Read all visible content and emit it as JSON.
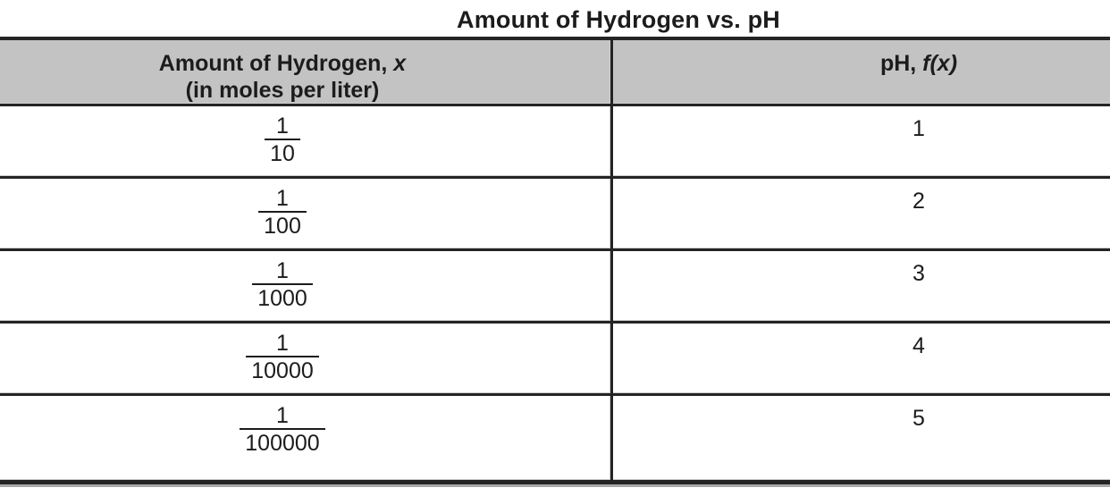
{
  "title": "Amount of Hydrogen vs. pH",
  "table": {
    "header": {
      "x_col": {
        "line1_text": "Amount of Hydrogen, ",
        "line1_var": "x",
        "line2": "(in moles per liter)"
      },
      "fx_col": {
        "prefix": "pH, ",
        "func": "f(x)"
      }
    },
    "rows": [
      {
        "x_num": "1",
        "x_den": "10",
        "fx": "1"
      },
      {
        "x_num": "1",
        "x_den": "100",
        "fx": "2"
      },
      {
        "x_num": "1",
        "x_den": "1000",
        "fx": "3"
      },
      {
        "x_num": "1",
        "x_den": "10000",
        "fx": "4"
      },
      {
        "x_num": "1",
        "x_den": "100000",
        "fx": "5"
      }
    ]
  },
  "colors": {
    "header_bg": "#c3c3c3",
    "border_dark": "#242424",
    "border_light": "#cfcfcf",
    "text": "#1c1c1c",
    "bg": "#ffffff"
  }
}
